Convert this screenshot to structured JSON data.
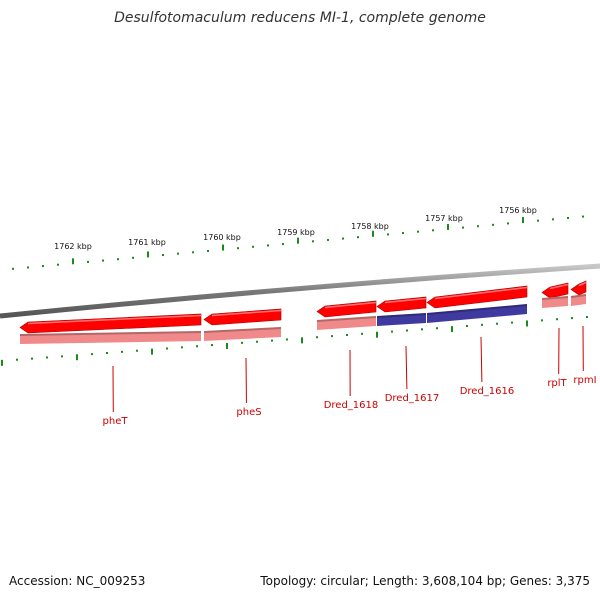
{
  "title": "Desulfotomaculum reducens MI-1, complete genome",
  "footer": {
    "accession": "Accession: NC_009253",
    "summary": "Topology: circular; Length: 3,608,104 bp; Genes: 3,375"
  },
  "scale_labels": [
    "1762 kbp",
    "1761 kbp",
    "1760 kbp",
    "1759 kbp",
    "1758 kbp",
    "1757 kbp",
    "1756 kbp"
  ],
  "genes": [
    {
      "name": "pheT",
      "color": "#ff0000",
      "subcolor": "#f08a8a"
    },
    {
      "name": "pheS",
      "color": "#ff0000",
      "subcolor": "#f08a8a"
    },
    {
      "name": "Dred_1618",
      "color": "#ff0000",
      "subcolor": "#f08a8a"
    },
    {
      "name": "Dred_1617",
      "color": "#ff0000",
      "subcolor": "#3f3aa0"
    },
    {
      "name": "Dred_1616",
      "color": "#ff0000",
      "subcolor": "#3f3aa0"
    },
    {
      "name": "rplT",
      "color": "#ff0000",
      "subcolor": "#f08a8a"
    },
    {
      "name": "rpmI",
      "color": "#ff0000",
      "subcolor": "#f08a8a"
    }
  ],
  "colors": {
    "backbone": "#888888",
    "ticks": "#1a8a1a",
    "label": "#cc0000"
  }
}
